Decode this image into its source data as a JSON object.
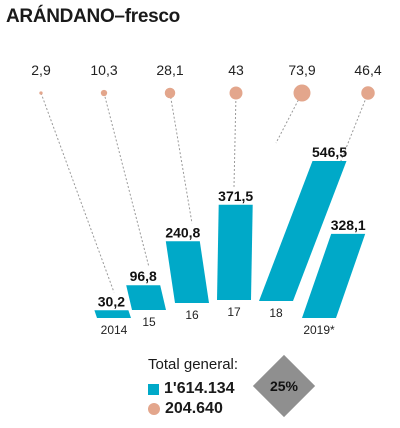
{
  "chart_data": {
    "type": "bar",
    "title": "ARÁNDANO–fresco",
    "categories": [
      "2014",
      "15",
      "16",
      "17",
      "18",
      "2019*"
    ],
    "series": [
      {
        "values": [
          30.2,
          96.8,
          240.8,
          371.5,
          546.5,
          328.1
        ],
        "labels": [
          "30,2",
          "96,8",
          "240,8",
          "371,5",
          "546,5",
          "328,1"
        ],
        "color": "#00a9c8"
      },
      {
        "values": [
          2.9,
          10.3,
          28.1,
          43,
          73.9,
          46.4
        ],
        "labels": [
          "2,9",
          "10,3",
          "28,1",
          "43",
          "73,9",
          "46,4"
        ],
        "color": "#e3a68c"
      }
    ],
    "ylim": [
      0,
      546.5
    ]
  },
  "legend": {
    "title": "Total general:",
    "bar_total": "1'614.134",
    "dot_total": "204.640"
  },
  "badge": "25%",
  "colors": {
    "bar": "#00a9c8",
    "bubble": "#e3a68c",
    "badge": "#8f8f8f"
  }
}
